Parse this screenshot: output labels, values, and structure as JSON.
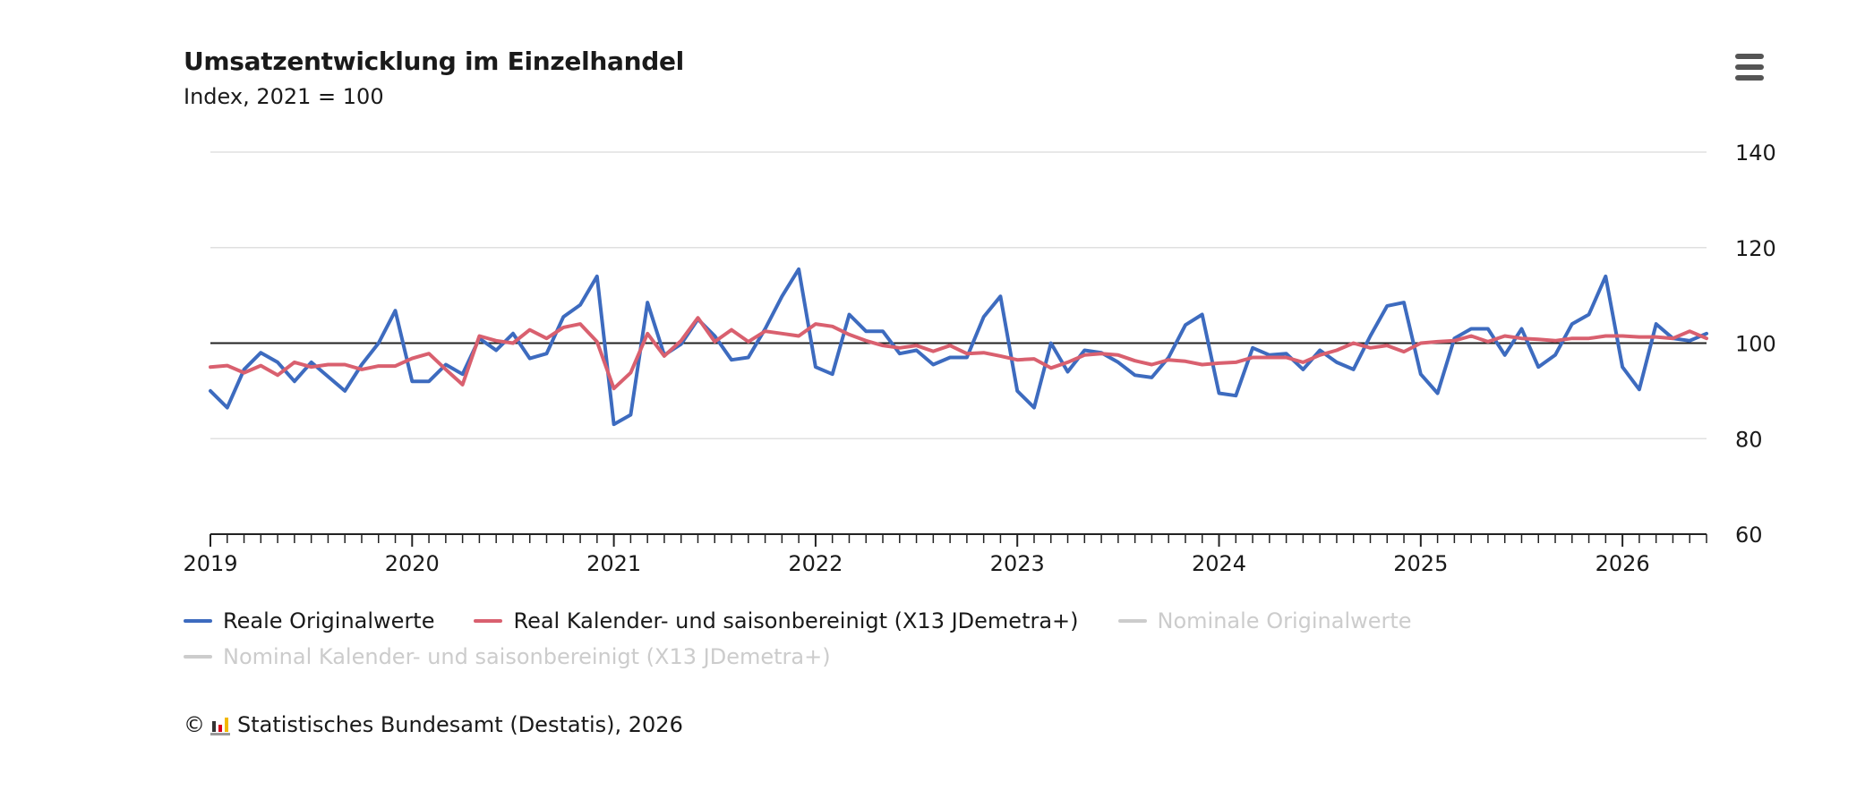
{
  "menu": {
    "icon": "hamburger-menu-icon"
  },
  "credit": {
    "copyright": "©",
    "logo_icon": "destatis-logo-icon",
    "text": "Statistisches Bundesamt (Destatis), 2026"
  },
  "chart_data": {
    "type": "line",
    "title": "Umsatzentwicklung im Einzelhandel",
    "subtitle": "Index, 2021 = 100",
    "x_start": "2019-01",
    "x_ticks": [
      "2019",
      "2020",
      "2021",
      "2022",
      "2023",
      "2024",
      "2025",
      "2026"
    ],
    "y_ticks": [
      60,
      80,
      100,
      120,
      140
    ],
    "ylim": [
      60,
      140
    ],
    "xlim": [
      "2019-01",
      "2026-06"
    ],
    "grid": true,
    "reference_line": 100,
    "y_axis_position": "right",
    "legend_position": "bottom-left",
    "series": [
      {
        "name": "Reale Originalwerte",
        "color": "#3d6bbf",
        "visible": true,
        "values": [
          90.0,
          86.5,
          94.5,
          98.0,
          96.0,
          92.0,
          96.0,
          93.0,
          90.0,
          95.5,
          100.0,
          106.8,
          92.0,
          92.0,
          95.5,
          93.5,
          101.0,
          98.5,
          102.0,
          96.8,
          97.8,
          105.5,
          108.0,
          114.0,
          83.0,
          85.0,
          108.5,
          97.5,
          99.8,
          105.0,
          101.5,
          96.5,
          97.0,
          103.0,
          109.8,
          115.5,
          95.0,
          93.5,
          106.0,
          102.5,
          102.5,
          97.8,
          98.5,
          95.5,
          97.0,
          97.0,
          105.5,
          109.8,
          90.0,
          86.5,
          100.0,
          94.0,
          98.5,
          98.0,
          96.0,
          93.3,
          92.8,
          97.0,
          103.8,
          106.0,
          89.5,
          89.0,
          99.0,
          97.5,
          97.8,
          94.5,
          98.5,
          96.0,
          94.5,
          101.5,
          107.8,
          108.5,
          93.5,
          89.5,
          101.0,
          103.0,
          103.0,
          97.5,
          103.0,
          95.0,
          97.5,
          104.0,
          106.0,
          114.0,
          95.0,
          90.3,
          104.0,
          101.0,
          100.5,
          102.0
        ]
      },
      {
        "name": "Real Kalender- und saisonbereinigt (X13 JDemetra+)",
        "color": "#d9606f",
        "visible": true,
        "values": [
          95.0,
          95.3,
          93.8,
          95.3,
          93.3,
          96.0,
          95.0,
          95.5,
          95.5,
          94.5,
          95.2,
          95.2,
          96.8,
          97.8,
          94.5,
          91.3,
          101.5,
          100.5,
          100.0,
          102.8,
          101.0,
          103.3,
          104.0,
          100.3,
          90.5,
          93.8,
          102.0,
          97.3,
          100.5,
          105.3,
          100.3,
          102.8,
          100.3,
          102.5,
          102.0,
          101.5,
          104.0,
          103.5,
          101.8,
          100.5,
          99.5,
          99.0,
          99.5,
          98.3,
          99.5,
          97.8,
          98.0,
          97.3,
          96.5,
          96.7,
          94.8,
          96.0,
          97.5,
          97.8,
          97.5,
          96.3,
          95.5,
          96.5,
          96.2,
          95.5,
          95.8,
          96.0,
          97.0,
          97.0,
          97.0,
          96.0,
          97.5,
          98.5,
          100.0,
          99.0,
          99.5,
          98.2,
          100.0,
          100.3,
          100.5,
          101.5,
          100.3,
          101.5,
          101.0,
          100.8,
          100.5,
          101.0,
          101.0,
          101.5,
          101.5,
          101.3,
          101.3,
          101.0,
          102.5,
          101.0
        ]
      },
      {
        "name": "Nominale Originalwerte",
        "color": "#cccccc",
        "visible": false,
        "values": []
      },
      {
        "name": "Nominal Kalender- und saisonbereinigt (X13 JDemetra+)",
        "color": "#cccccc",
        "visible": false,
        "values": []
      }
    ]
  }
}
